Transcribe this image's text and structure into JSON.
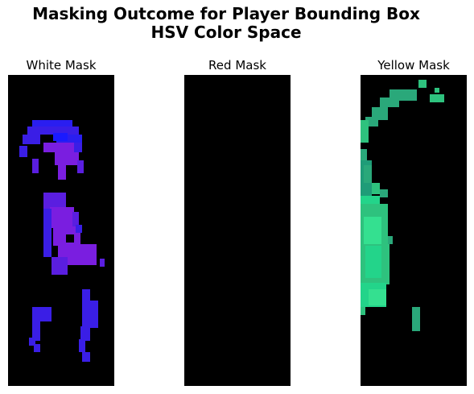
{
  "figure": {
    "title_line1": "Masking Outcome for Player Bounding Box",
    "title_line2": "HSV Color Space"
  },
  "panels": [
    {
      "title": "White Mask",
      "background": "#000000",
      "palette": [
        "#3a1ee6",
        "#5a1ee0",
        "#7a1ee0",
        "#2a1ef0",
        "#1a1aff"
      ]
    },
    {
      "title": "Red Mask",
      "background": "#000000",
      "palette": []
    },
    {
      "title": "Yellow Mask",
      "background": "#000000",
      "palette": [
        "#2aa87a",
        "#23d48a",
        "#2ec27e",
        "#1f9c78",
        "#34e090"
      ]
    }
  ]
}
